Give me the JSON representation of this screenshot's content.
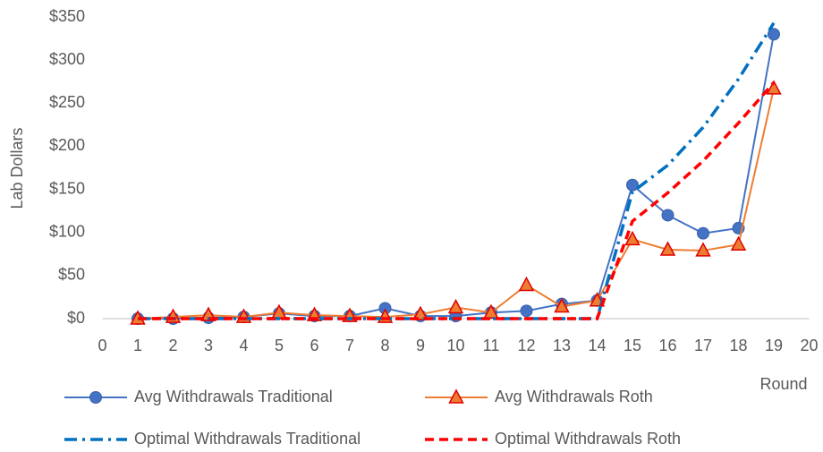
{
  "chart_data": {
    "type": "line",
    "y_label": "Lab Dollars",
    "x_label": "Round",
    "x": [
      1,
      2,
      3,
      4,
      5,
      6,
      7,
      8,
      9,
      10,
      11,
      12,
      13,
      14,
      15,
      16,
      17,
      18,
      19
    ],
    "xlim": [
      0,
      20
    ],
    "xticks": [
      0,
      1,
      2,
      3,
      4,
      5,
      6,
      7,
      8,
      9,
      10,
      11,
      12,
      13,
      14,
      15,
      16,
      17,
      18,
      19,
      20
    ],
    "ylim": [
      0,
      350
    ],
    "yticks": [
      {
        "value": 0,
        "label": "$0"
      },
      {
        "value": 50,
        "label": "$50"
      },
      {
        "value": 100,
        "label": "$100"
      },
      {
        "value": 150,
        "label": "$150"
      },
      {
        "value": 200,
        "label": "$200"
      },
      {
        "value": 250,
        "label": "$250"
      },
      {
        "value": 300,
        "label": "$300"
      },
      {
        "value": 350,
        "label": "$350"
      }
    ],
    "series": [
      {
        "name": "Avg Withdrawals Traditional",
        "color": "#4472c4",
        "marker": "circle",
        "dash": "solid",
        "values": [
          0,
          0,
          1,
          2,
          6,
          3,
          3,
          12,
          3,
          3,
          7,
          9,
          17,
          21,
          155,
          120,
          99,
          105,
          330
        ]
      },
      {
        "name": "Avg Withdrawals Roth",
        "color": "#ed7d31",
        "marker": "triangle",
        "dash": "solid",
        "values": [
          0,
          2,
          4,
          2,
          7,
          4,
          3,
          2,
          5,
          13,
          7,
          39,
          14,
          21,
          92,
          80,
          79,
          86,
          267
        ]
      },
      {
        "name": "Optimal Withdrawals Traditional",
        "color": "#0070c0",
        "marker": "none",
        "dash": "dashdot",
        "values": [
          0,
          0,
          0,
          0,
          0,
          0,
          0,
          0,
          0,
          0,
          0,
          0,
          0,
          0,
          147,
          178,
          222,
          278,
          343
        ]
      },
      {
        "name": "Optimal Withdrawals Roth",
        "color": "#ff0000",
        "marker": "none",
        "dash": "dash",
        "values": [
          0,
          0,
          0,
          0,
          0,
          0,
          0,
          0,
          0,
          0,
          0,
          0,
          0,
          0,
          113,
          146,
          183,
          227,
          274
        ]
      }
    ]
  }
}
